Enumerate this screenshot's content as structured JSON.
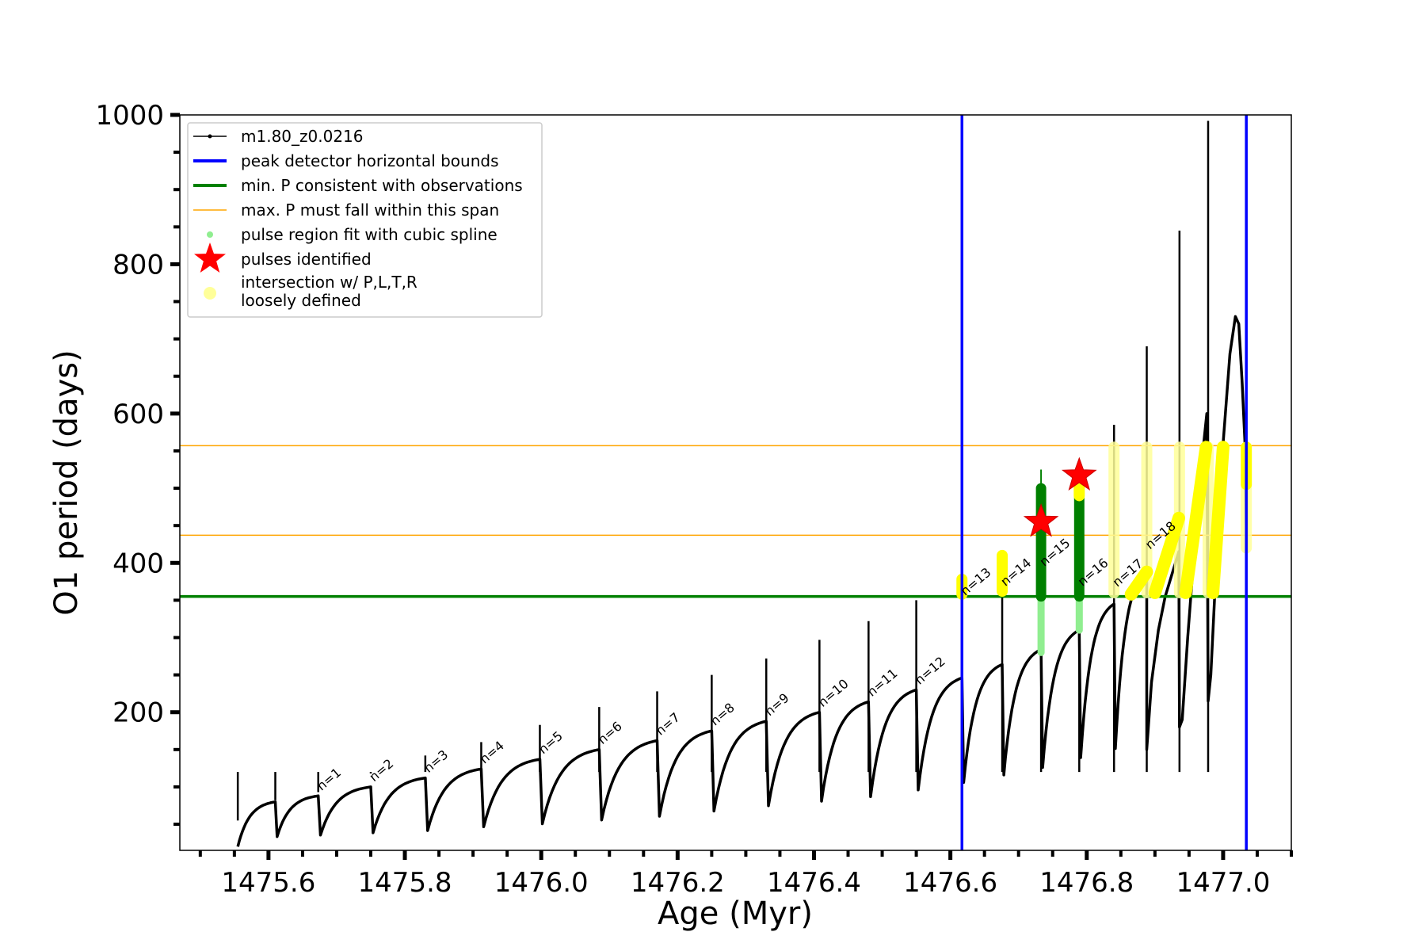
{
  "chart_data": {
    "type": "line",
    "title": "",
    "xlabel": "Age (Myr)",
    "ylabel": "O1 period (days)",
    "xlim": [
      1475.47,
      1477.1
    ],
    "ylim": [
      15,
      1000
    ],
    "x_ticks": [
      1475.6,
      1475.8,
      1476.0,
      1476.2,
      1476.4,
      1476.6,
      1476.8,
      1477.0
    ],
    "x_tick_labels": [
      "1475.6",
      "1475.8",
      "1476.0",
      "1476.2",
      "1476.4",
      "1476.6",
      "1476.8",
      "1477.0"
    ],
    "y_ticks": [
      200,
      400,
      600,
      800,
      1000
    ],
    "y_tick_labels": [
      "200",
      "400",
      "600",
      "800",
      "1000"
    ],
    "grid": false,
    "legend_position": "top-left",
    "legend": [
      {
        "label": "m1.80_z0.0216",
        "marker": "line-dot",
        "color": "#000000"
      },
      {
        "label": "peak detector horizontal bounds",
        "marker": "line-thick",
        "color": "#0000ff"
      },
      {
        "label": "min. P consistent with observations",
        "marker": "line-thick",
        "color": "#008000"
      },
      {
        "label": "max. P must fall within this span",
        "marker": "line-thin",
        "color": "#ffa500"
      },
      {
        "label": "pulse region fit with cubic spline",
        "marker": "dot",
        "color": "#90ee90"
      },
      {
        "label": "pulses identified",
        "marker": "star",
        "color": "#ff0000"
      },
      {
        "label": "intersection w/ P,L,T,R",
        "label_line2": "loosely defined",
        "marker": "circle",
        "color": "#ffff99"
      }
    ],
    "reference_lines": {
      "vertical_blue_x": [
        1476.617,
        1477.034
      ],
      "horizontal_green_y": 355,
      "horizontal_orange_y": [
        437,
        557
      ]
    },
    "colors": {
      "track": "#000000",
      "bounds": "#0000ff",
      "min_period": "#008000",
      "max_period_span": "#ffa500",
      "spline_fit": "#90ee90",
      "spline_fit_dark": "#008000",
      "pulse_star": "#ff0000",
      "intersection": "#ffff00",
      "intersection_loose": "#ffff99"
    },
    "pulses": [
      {
        "n": 1,
        "age": 1475.673,
        "p_peak": 88,
        "p_min": 33
      },
      {
        "n": 2,
        "age": 1475.75,
        "p_peak": 100,
        "p_min": 35
      },
      {
        "n": 3,
        "age": 1475.83,
        "p_peak": 112,
        "p_min": 38
      },
      {
        "n": 4,
        "age": 1475.912,
        "p_peak": 124,
        "p_min": 41
      },
      {
        "n": 5,
        "age": 1475.998,
        "p_peak": 137,
        "p_min": 46
      },
      {
        "n": 6,
        "age": 1476.085,
        "p_peak": 150,
        "p_min": 50
      },
      {
        "n": 7,
        "age": 1476.17,
        "p_peak": 162,
        "p_min": 55
      },
      {
        "n": 8,
        "age": 1476.25,
        "p_peak": 175,
        "p_min": 60
      },
      {
        "n": 9,
        "age": 1476.33,
        "p_peak": 188,
        "p_min": 67
      },
      {
        "n": 10,
        "age": 1476.408,
        "p_peak": 200,
        "p_min": 74
      },
      {
        "n": 11,
        "age": 1476.48,
        "p_peak": 214,
        "p_min": 80
      },
      {
        "n": 12,
        "age": 1476.55,
        "p_peak": 230,
        "p_min": 86
      },
      {
        "n": 13,
        "age": 1476.617,
        "p_peak": 246,
        "p_min": 95
      },
      {
        "n": 14,
        "age": 1476.676,
        "p_peak": 264,
        "p_min": 105
      },
      {
        "n": 15,
        "age": 1476.733,
        "p_peak": 284,
        "p_min": 115
      },
      {
        "n": 16,
        "age": 1476.789,
        "p_peak": 310,
        "p_min": 125
      },
      {
        "n": 17,
        "age": 1476.84,
        "p_peak": 345,
        "p_min": 138
      },
      {
        "n": 18,
        "age": 1476.888,
        "p_peak": 390,
        "p_min": 150
      }
    ],
    "first_segment": {
      "age_start": 1475.555,
      "age_end": 1475.61,
      "p_start": 20,
      "p_end": 80
    },
    "spikes": [
      {
        "age": 1475.555,
        "p": 55
      },
      {
        "age": 1475.61,
        "p": 82
      },
      {
        "age": 1475.673,
        "p": 93
      },
      {
        "age": 1475.75,
        "p": 118
      },
      {
        "age": 1475.83,
        "p": 142
      },
      {
        "age": 1475.912,
        "p": 160
      },
      {
        "age": 1475.998,
        "p": 183
      },
      {
        "age": 1476.085,
        "p": 207
      },
      {
        "age": 1476.17,
        "p": 228
      },
      {
        "age": 1476.25,
        "p": 250
      },
      {
        "age": 1476.33,
        "p": 272
      },
      {
        "age": 1476.408,
        "p": 297
      },
      {
        "age": 1476.48,
        "p": 322
      },
      {
        "age": 1476.55,
        "p": 350
      },
      {
        "age": 1476.617,
        "p": 375
      },
      {
        "age": 1476.676,
        "p": 415
      },
      {
        "age": 1476.733,
        "p": 500
      },
      {
        "age": 1476.789,
        "p": 525
      },
      {
        "age": 1476.84,
        "p": 585
      },
      {
        "age": 1476.888,
        "p": 690
      },
      {
        "age": 1476.936,
        "p": 845
      },
      {
        "age": 1476.978,
        "p": 992
      }
    ],
    "late_track": [
      [
        1476.888,
        150
      ],
      [
        1476.89,
        175
      ],
      [
        1476.895,
        240
      ],
      [
        1476.905,
        310
      ],
      [
        1476.915,
        355
      ],
      [
        1476.925,
        385
      ],
      [
        1476.935,
        415
      ],
      [
        1476.936,
        180
      ],
      [
        1476.94,
        190
      ],
      [
        1476.948,
        300
      ],
      [
        1476.958,
        420
      ],
      [
        1476.967,
        520
      ],
      [
        1476.976,
        600
      ],
      [
        1476.978,
        215
      ],
      [
        1476.982,
        250
      ],
      [
        1476.99,
        400
      ],
      [
        1477.0,
        560
      ],
      [
        1477.01,
        680
      ],
      [
        1477.018,
        730
      ],
      [
        1477.023,
        720
      ],
      [
        1477.028,
        640
      ],
      [
        1477.032,
        560
      ],
      [
        1477.034,
        450
      ]
    ],
    "spline_fits": [
      {
        "age": 1476.733,
        "p_low": 280,
        "p_high": 500,
        "dark_from": 355,
        "dark_to": 500,
        "spike_to": 525
      },
      {
        "age": 1476.789,
        "p_low": 310,
        "p_high": 500,
        "dark_from": 355,
        "dark_to": 500,
        "spike_to": 520
      }
    ],
    "stars": [
      {
        "age": 1476.733,
        "p": 455
      },
      {
        "age": 1476.789,
        "p": 517
      }
    ],
    "yellow_strong": [
      {
        "age": 1476.617,
        "p_low": 358,
        "p_high": 378
      },
      {
        "age": 1476.676,
        "p_low": 362,
        "p_high": 410
      },
      {
        "age": 1476.789,
        "p_low": 490,
        "p_high": 520
      },
      {
        "age": 1477.034,
        "p_low": 505,
        "p_high": 555
      }
    ],
    "yellow_diagonals": [
      [
        [
          1476.865,
          358
        ],
        [
          1476.888,
          388
        ]
      ],
      [
        [
          1476.9,
          360
        ],
        [
          1476.935,
          460
        ]
      ],
      [
        [
          1476.945,
          360
        ],
        [
          1476.975,
          555
        ]
      ],
      [
        [
          1476.985,
          360
        ],
        [
          1477.0,
          555
        ]
      ]
    ],
    "yellow_loose": [
      {
        "age": 1476.84,
        "p_low": 360,
        "p_high": 555
      },
      {
        "age": 1476.888,
        "p_low": 360,
        "p_high": 555
      },
      {
        "age": 1476.936,
        "p_low": 360,
        "p_high": 555
      },
      {
        "age": 1476.978,
        "p_low": 360,
        "p_high": 555
      },
      {
        "age": 1477.034,
        "p_low": 420,
        "p_high": 500
      }
    ]
  }
}
